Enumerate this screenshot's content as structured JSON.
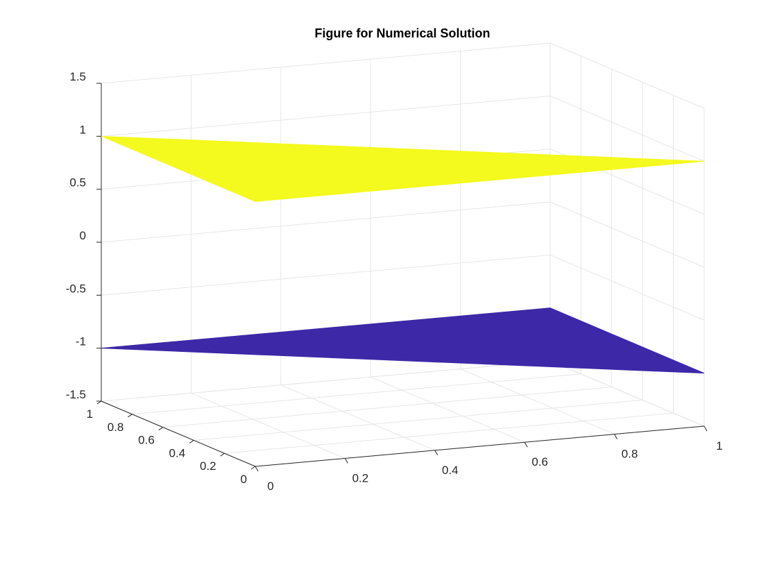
{
  "chart_data": {
    "type": "surface",
    "title": "Figure for Numerical Solution",
    "xlabel": "",
    "ylabel": "",
    "zlabel": "",
    "xlim": [
      0,
      1
    ],
    "ylim": [
      0,
      1
    ],
    "zlim": [
      -1.5,
      1.5
    ],
    "x_ticks": [
      "0",
      "0.2",
      "0.4",
      "0.6",
      "0.8",
      "1"
    ],
    "y_ticks": [
      "0",
      "0.2",
      "0.4",
      "0.6",
      "0.8",
      "1"
    ],
    "z_ticks": [
      "-1.5",
      "-1",
      "-0.5",
      "0",
      "0.5",
      "1",
      "1.5"
    ],
    "grid": true,
    "surfaces": [
      {
        "color": "#f4f91e",
        "vertices": [
          {
            "x": 0,
            "y": 0,
            "z": 1
          },
          {
            "x": 1,
            "y": 0,
            "z": 1
          },
          {
            "x": 0,
            "y": 1,
            "z": 1
          }
        ]
      },
      {
        "color": "#3d28a8",
        "vertices": [
          {
            "x": 1,
            "y": 0,
            "z": -1
          },
          {
            "x": 1,
            "y": 1,
            "z": -1
          },
          {
            "x": 0,
            "y": 1,
            "z": -1
          }
        ]
      }
    ]
  }
}
